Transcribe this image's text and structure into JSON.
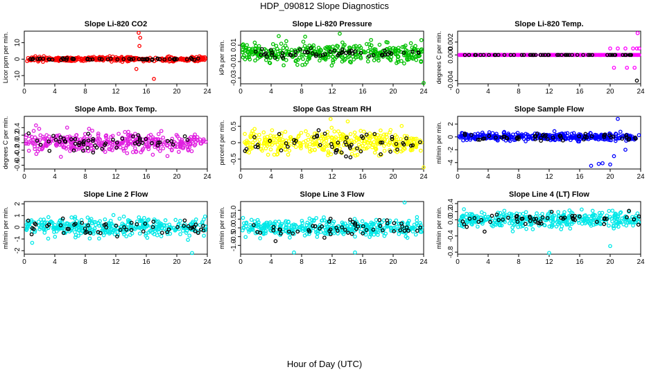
{
  "figure": {
    "title": "HDP_090812  Slope Diagnostics",
    "xlabel": "Hour of Day (UTC)"
  },
  "chart_data": [
    {
      "type": "scatter",
      "title": "Slope Li-820 CO2",
      "ylabel": "Licor ppm per min.",
      "xlim": [
        0,
        24
      ],
      "xticks": [
        0,
        4,
        8,
        12,
        16,
        20,
        24
      ],
      "ylim": [
        -15,
        17
      ],
      "yticks": [
        -10,
        0,
        10
      ],
      "yticklabels": [
        "-10",
        "0",
        "10"
      ],
      "color": "#ff0000",
      "sd": 1.2,
      "outliers": [
        [
          15,
          16
        ],
        [
          15.2,
          13
        ],
        [
          15.1,
          8
        ],
        [
          17,
          -12
        ],
        [
          14.7,
          -6
        ]
      ],
      "hl_sd": 0.5
    },
    {
      "type": "scatter",
      "title": "Slope Li-820 Pressure",
      "ylabel": "kPa per min.",
      "xlim": [
        0,
        24
      ],
      "xticks": [
        0,
        4,
        8,
        12,
        16,
        20,
        24
      ],
      "ylim": [
        -0.037,
        0.027
      ],
      "yticks": [
        -0.03,
        -0.01,
        0.01
      ],
      "yticklabels": [
        "-0.03",
        "-0.01",
        "0.01"
      ],
      "color": "#00c000",
      "sd": 0.01,
      "outliers": [
        [
          13,
          0.024
        ],
        [
          5,
          0.021
        ],
        [
          24,
          -0.036
        ]
      ],
      "hl_sd": 0.004
    },
    {
      "type": "scatter",
      "title": "Slope Li-820 Temp.",
      "ylabel": "degrees C per min.",
      "xlim": [
        0,
        24
      ],
      "xticks": [
        0,
        4,
        8,
        12,
        16,
        20,
        24
      ],
      "ylim": [
        -0.0045,
        0.0037
      ],
      "yticks": [
        -0.004,
        0,
        0.002
      ],
      "yticklabels": [
        "-0.004",
        "0.000",
        "0.002"
      ],
      "color": "#ff00ff",
      "sd": 0,
      "outliers": [
        [
          23.6,
          0.0034
        ],
        [
          20,
          0.001
        ],
        [
          21,
          0.001
        ],
        [
          22,
          0.001
        ],
        [
          23,
          0.001
        ],
        [
          23.5,
          0.001
        ],
        [
          23.8,
          0.001
        ],
        [
          20.5,
          -0.002
        ],
        [
          23.2,
          -0.002
        ],
        [
          22.2,
          -0.002
        ],
        [
          23.5,
          -0.004
        ]
      ],
      "hl_sd": 0
    },
    {
      "type": "scatter",
      "title": "Slope Amb. Box Temp.",
      "ylabel": "degrees C per min.",
      "xlim": [
        0,
        24
      ],
      "xticks": [
        0,
        4,
        8,
        12,
        16,
        20,
        24
      ],
      "ylim": [
        -0.7,
        0.7
      ],
      "yticks": [
        -0.6,
        -0.4,
        -0.2,
        0,
        0.2,
        0.4
      ],
      "yticklabels": [
        "-0.6",
        "-0.4",
        "-0.2",
        "0.0",
        "0.2",
        "0.4"
      ],
      "color": "#e020e0",
      "sd": 0.25,
      "outliers": [],
      "hl_sd": 0.2
    },
    {
      "type": "scatter",
      "title": "Slope Gas Stream RH",
      "ylabel": "percent per min.",
      "xlim": [
        0,
        24
      ],
      "xticks": [
        0,
        4,
        8,
        12,
        16,
        20,
        24
      ],
      "ylim": [
        -0.8,
        0.8
      ],
      "yticks": [
        -0.5,
        0,
        0.5
      ],
      "yticklabels": [
        "-0.5",
        "0",
        "0.5"
      ],
      "color": "#ffff00",
      "sd": 0.3,
      "outliers": [
        [
          24,
          -0.75
        ],
        [
          11.8,
          0.72
        ]
      ],
      "hl_sd": 0.3
    },
    {
      "type": "scatter",
      "title": "Slope Sample Flow",
      "ylabel": "ml/min per min.",
      "xlim": [
        0,
        24
      ],
      "xticks": [
        0,
        4,
        8,
        12,
        16,
        20,
        24
      ],
      "ylim": [
        -5,
        3.2
      ],
      "yticks": [
        -4,
        -2,
        0,
        2
      ],
      "yticklabels": [
        "-4",
        "-2",
        "0",
        "2"
      ],
      "color": "#0000ff",
      "sd": 0.5,
      "outliers": [
        [
          21,
          2.8
        ],
        [
          17.5,
          -4.5
        ],
        [
          18.5,
          -4.2
        ],
        [
          19,
          -4.1
        ],
        [
          20,
          -4.3
        ],
        [
          20.5,
          -3
        ],
        [
          22,
          -2
        ]
      ],
      "hl_sd": 0.5
    },
    {
      "type": "scatter",
      "title": "Slope Line 2 Flow",
      "ylabel": "ml/min per min.",
      "xlim": [
        0,
        24
      ],
      "xticks": [
        0,
        4,
        8,
        12,
        16,
        20,
        24
      ],
      "ylim": [
        -2.3,
        2.2
      ],
      "yticks": [
        -2,
        -1,
        0,
        1,
        2
      ],
      "yticklabels": [
        "-2",
        "-1",
        "0",
        "1",
        "2"
      ],
      "color": "#00e8e8",
      "sd": 0.7,
      "outliers": [
        [
          22,
          -2.2
        ]
      ],
      "hl_sd": 0.6
    },
    {
      "type": "scatter",
      "title": "Slope Line 3 Flow",
      "ylabel": "ml/min per min.",
      "xlim": [
        0,
        24
      ],
      "xticks": [
        0,
        4,
        8,
        12,
        16,
        20,
        24
      ],
      "ylim": [
        -1.5,
        1.5
      ],
      "yticks": [
        -1,
        -0.5,
        0,
        0.5,
        1
      ],
      "yticklabels": [
        "-1.0",
        "-0.5",
        "0.0",
        "0.5",
        "1.0"
      ],
      "color": "#00e8e8",
      "sd": 0.4,
      "outliers": [
        [
          21.5,
          1.45
        ],
        [
          15,
          -1.4
        ],
        [
          7,
          -1.4
        ]
      ],
      "hl_sd": 0.4
    },
    {
      "type": "scatter",
      "title": "Slope Line 4 (LT) Flow",
      "ylabel": "ml/min per min.",
      "xlim": [
        0,
        24
      ],
      "xticks": [
        0,
        4,
        8,
        12,
        16,
        20,
        24
      ],
      "ylim": [
        -0.85,
        0.45
      ],
      "yticks": [
        -0.8,
        -0.4,
        0,
        0.2,
        0.4
      ],
      "yticklabels": [
        "-0.8",
        "-0.4",
        "0.0",
        "0.2",
        "0.4"
      ],
      "color": "#00e8e8",
      "sd": 0.17,
      "outliers": [
        [
          12,
          -0.82
        ],
        [
          20,
          -0.65
        ]
      ],
      "hl_sd": 0.15
    }
  ]
}
